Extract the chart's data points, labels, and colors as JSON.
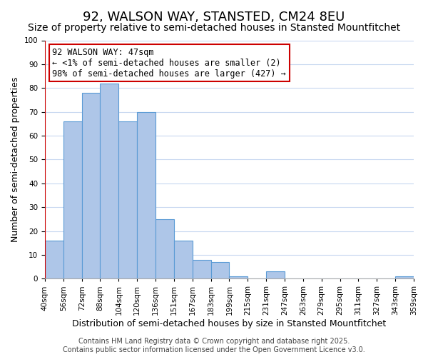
{
  "title": "92, WALSON WAY, STANSTED, CM24 8EU",
  "subtitle": "Size of property relative to semi-detached houses in Stansted Mountfitchet",
  "xlabel": "Distribution of semi-detached houses by size in Stansted Mountfitchet",
  "ylabel": "Number of semi-detached properties",
  "bin_labels": [
    "40sqm",
    "56sqm",
    "72sqm",
    "88sqm",
    "104sqm",
    "120sqm",
    "136sqm",
    "151sqm",
    "167sqm",
    "183sqm",
    "199sqm",
    "215sqm",
    "231sqm",
    "247sqm",
    "263sqm",
    "279sqm",
    "295sqm",
    "311sqm",
    "327sqm",
    "343sqm",
    "359sqm"
  ],
  "bar_values": [
    16,
    66,
    78,
    82,
    66,
    70,
    25,
    16,
    8,
    7,
    1,
    0,
    3,
    0,
    0,
    0,
    0,
    0,
    0,
    1
  ],
  "bar_color": "#aec6e8",
  "bar_edge_color": "#5b9bd5",
  "highlight_color": "#cc0000",
  "annotation_text": "92 WALSON WAY: 47sqm\n← <1% of semi-detached houses are smaller (2)\n98% of semi-detached houses are larger (427) →",
  "annotation_box_color": "#ffffff",
  "annotation_box_edge": "#cc0000",
  "ylim": [
    0,
    100
  ],
  "yticks": [
    0,
    10,
    20,
    30,
    40,
    50,
    60,
    70,
    80,
    90,
    100
  ],
  "background_color": "#ffffff",
  "grid_color": "#c8d8f0",
  "footer_line1": "Contains HM Land Registry data © Crown copyright and database right 2025.",
  "footer_line2": "Contains public sector information licensed under the Open Government Licence v3.0.",
  "title_fontsize": 13,
  "subtitle_fontsize": 10,
  "axis_label_fontsize": 9,
  "tick_fontsize": 7.5,
  "annotation_fontsize": 8.5,
  "footer_fontsize": 7
}
